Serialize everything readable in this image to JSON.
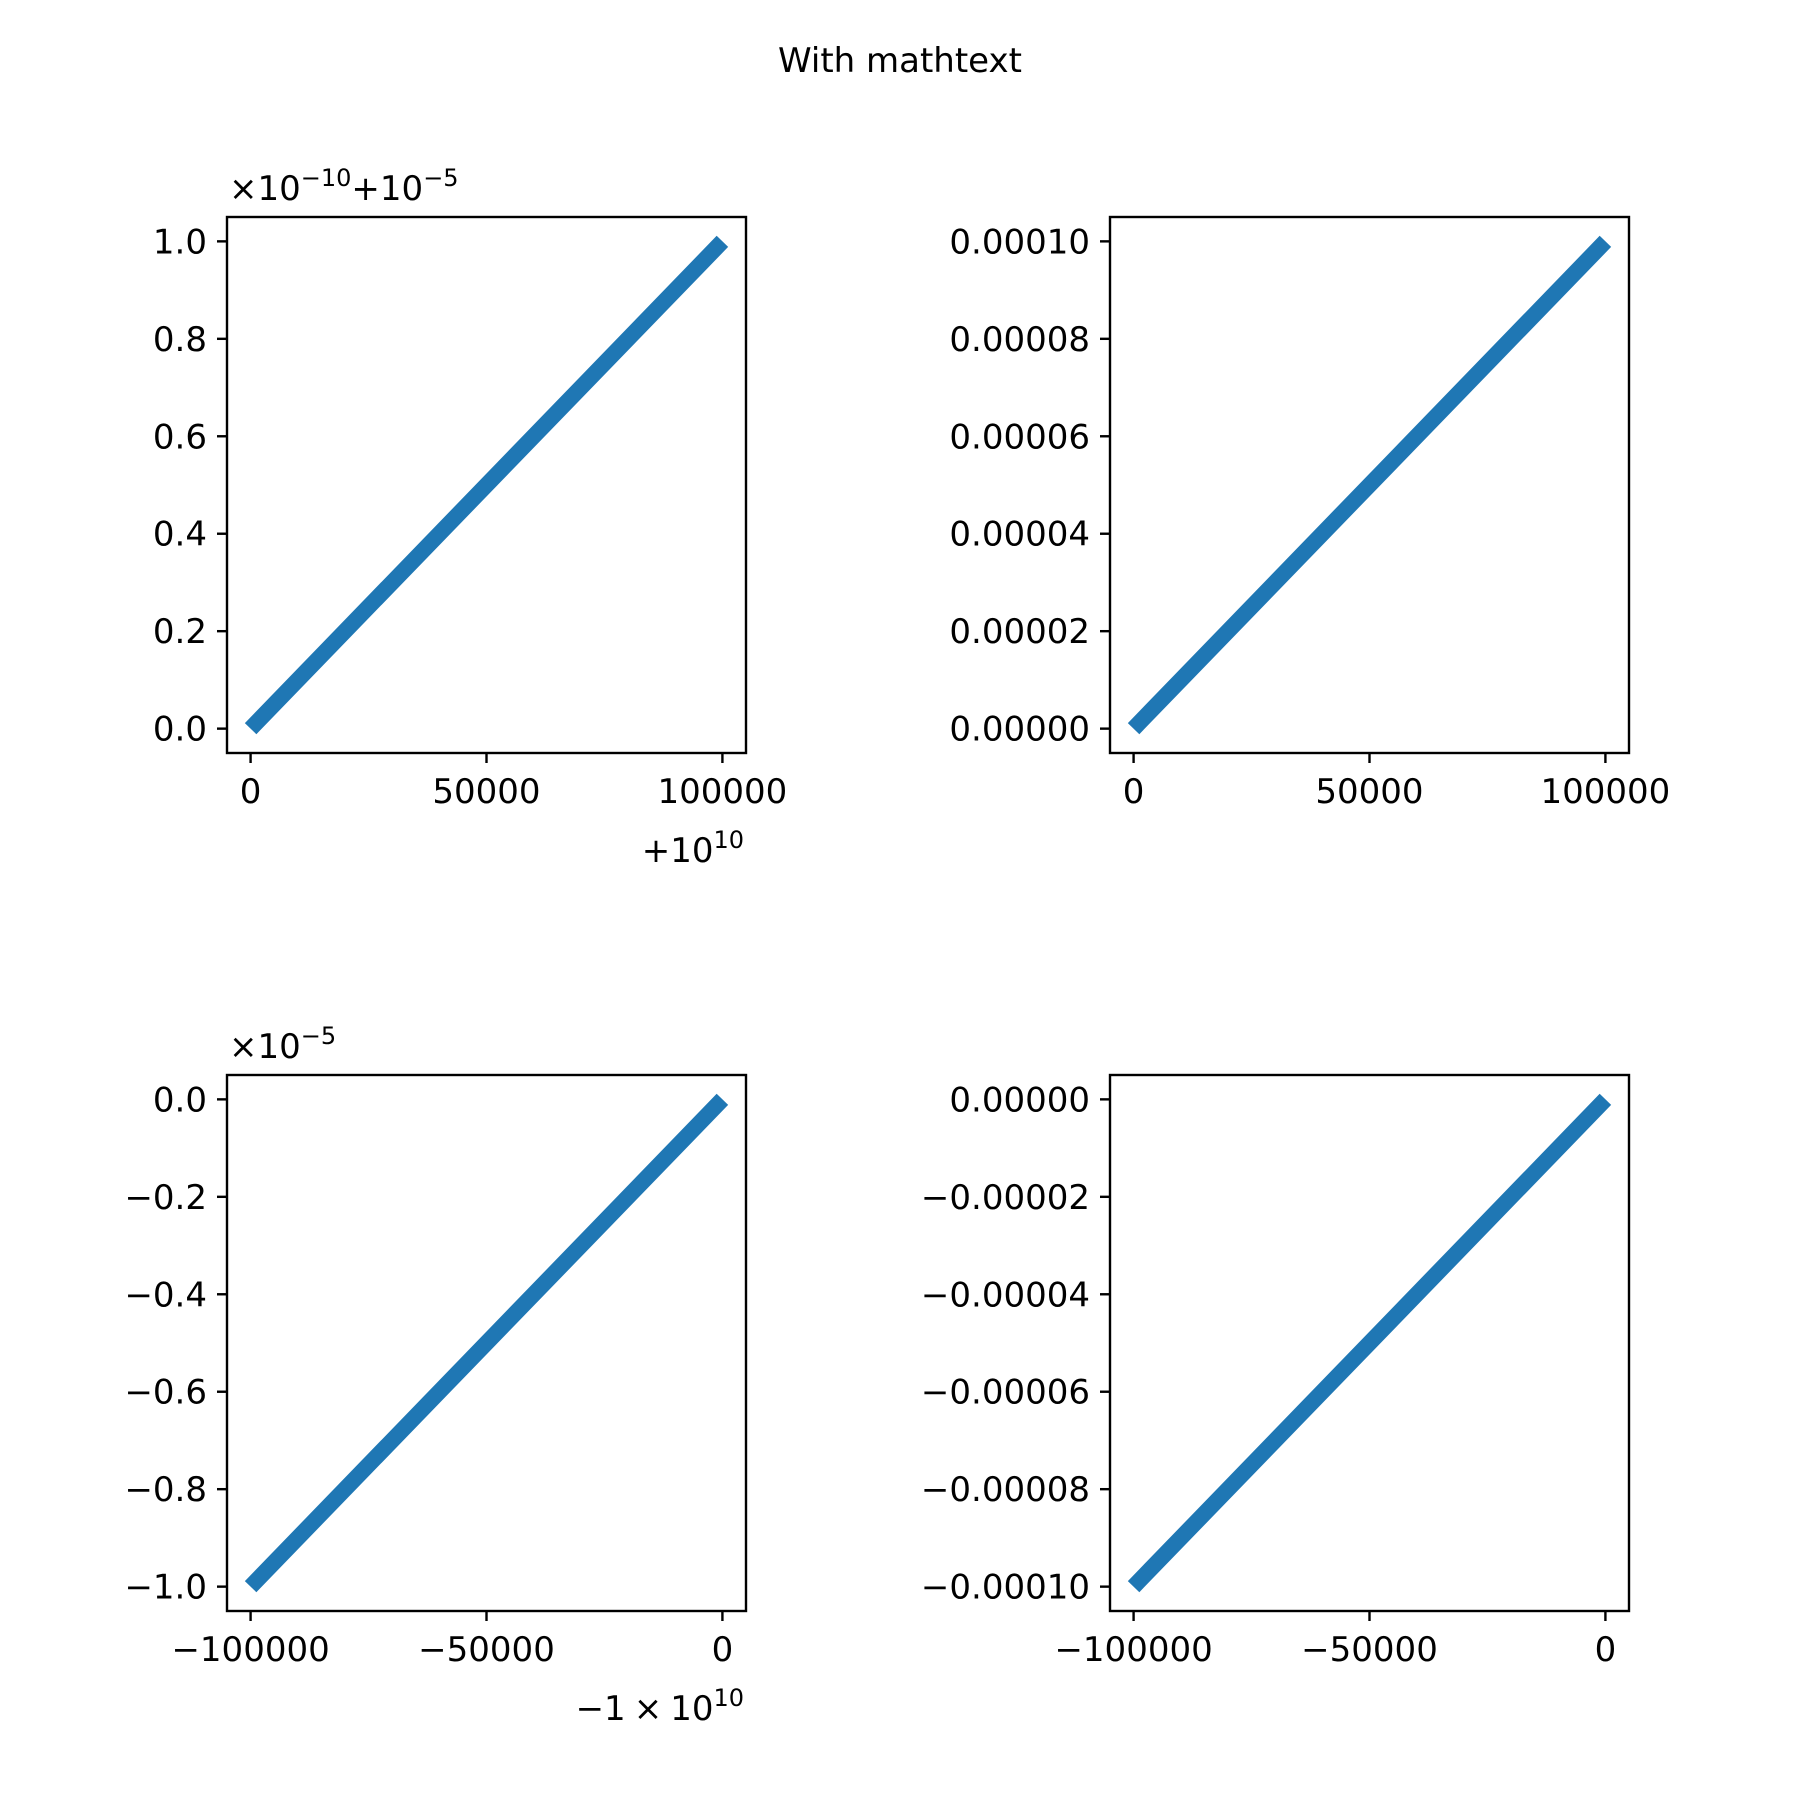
{
  "figure": {
    "suptitle": "With mathtext"
  },
  "chart_data": [
    {
      "id": "top-left",
      "type": "line",
      "x": [
        10000000000,
        10000100000
      ],
      "y": [
        1e-05,
        1.00001e-05
      ],
      "x_tick_values": [
        0,
        50000,
        100000
      ],
      "x_tick_labels": [
        "0",
        "50000",
        "100000"
      ],
      "y_tick_values": [
        0.0,
        0.2,
        0.4,
        0.6,
        0.8,
        1.0
      ],
      "y_tick_labels": [
        "0.0",
        "0.2",
        "0.4",
        "0.6",
        "0.8",
        "1.0"
      ],
      "x_offset_text": {
        "sign": "+",
        "base": "10",
        "exp": "10"
      },
      "y_offset_text": {
        "mult": "×",
        "base1": "10",
        "exp1": "−10",
        "sign": "+",
        "base2": "10",
        "exp2": "−5"
      },
      "xlim_ticks": [
        -5000,
        105000
      ],
      "ylim_ticks": [
        -0.05,
        1.05
      ],
      "color": "#1f77b4"
    },
    {
      "id": "top-right",
      "type": "line",
      "x": [
        0,
        100000
      ],
      "y": [
        0.0,
        0.0001
      ],
      "x_tick_values": [
        0,
        50000,
        100000
      ],
      "x_tick_labels": [
        "0",
        "50000",
        "100000"
      ],
      "y_tick_values": [
        0.0,
        2e-05,
        4e-05,
        6e-05,
        8e-05,
        0.0001
      ],
      "y_tick_labels": [
        "0.00000",
        "0.00002",
        "0.00004",
        "0.00006",
        "0.00008",
        "0.00010"
      ],
      "xlim_ticks": [
        -5000,
        105000
      ],
      "ylim_ticks": [
        -5e-06,
        0.000105
      ],
      "color": "#1f77b4"
    },
    {
      "id": "bottom-left",
      "type": "line",
      "x": [
        -10000100000,
        -10000000000
      ],
      "y": [
        -1e-05,
        0.0
      ],
      "x_tick_values": [
        -100000,
        -50000,
        0
      ],
      "x_tick_labels": [
        "−100000",
        "−50000",
        "0"
      ],
      "y_tick_values": [
        -1.0,
        -0.8,
        -0.6,
        -0.4,
        -0.2,
        0.0
      ],
      "y_tick_labels": [
        "−1.0",
        "−0.8",
        "−0.6",
        "−0.4",
        "−0.2",
        "0.0"
      ],
      "x_offset_text": {
        "sign": "−1",
        "mult": "×",
        "base": "10",
        "exp": "10"
      },
      "y_offset_text": {
        "mult": "×",
        "base": "10",
        "exp": "−5"
      },
      "xlim_ticks": [
        -105000,
        5000
      ],
      "ylim_ticks": [
        -1.05,
        0.05
      ],
      "color": "#1f77b4"
    },
    {
      "id": "bottom-right",
      "type": "line",
      "x": [
        -100000,
        0
      ],
      "y": [
        -0.0001,
        0.0
      ],
      "x_tick_values": [
        -100000,
        -50000,
        0
      ],
      "x_tick_labels": [
        "−100000",
        "−50000",
        "0"
      ],
      "y_tick_values": [
        -0.0001,
        -8e-05,
        -6e-05,
        -4e-05,
        -2e-05,
        0.0
      ],
      "y_tick_labels": [
        "−0.00010",
        "−0.00008",
        "−0.00006",
        "−0.00004",
        "−0.00002",
        "0.00000"
      ],
      "xlim_ticks": [
        -105000,
        5000
      ],
      "ylim_ticks": [
        -0.000105,
        5e-06
      ],
      "color": "#1f77b4"
    }
  ]
}
